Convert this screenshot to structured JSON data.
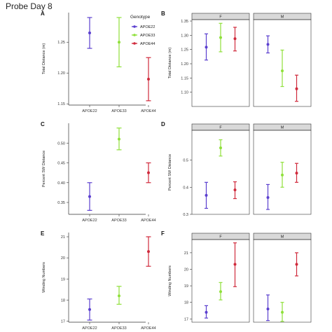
{
  "title": "Probe Day 8",
  "legend": {
    "title": "Genotype",
    "entries": [
      {
        "name": "APOE22",
        "color": "#5b3fcf"
      },
      {
        "name": "APOE33",
        "color": "#8fe03a"
      },
      {
        "name": "APOE44",
        "color": "#d02a3c"
      }
    ]
  },
  "chart_data": [
    {
      "panel": "A",
      "type": "scatter",
      "ylabel": "Total Distance (m)",
      "categories": [
        "APOE22",
        "APOE33",
        "APOE44"
      ],
      "ylim": [
        1.148,
        1.298
      ],
      "yticks": [
        1.15,
        1.2,
        1.25
      ],
      "points": [
        {
          "x": "APOE22",
          "y": 1.265,
          "lo": 1.24,
          "hi": 1.29,
          "color": "#5b3fcf"
        },
        {
          "x": "APOE33",
          "y": 1.25,
          "lo": 1.21,
          "hi": 1.29,
          "color": "#8fe03a"
        },
        {
          "x": "APOE44",
          "y": 1.19,
          "lo": 1.155,
          "hi": 1.225,
          "color": "#d02a3c"
        }
      ]
    },
    {
      "panel": "B",
      "type": "scatter",
      "ylabel": "Total Distance (m)",
      "facets": [
        "F",
        "M"
      ],
      "ylim": [
        1.05,
        1.355
      ],
      "yticks": [
        1.1,
        1.15,
        1.2,
        1.25,
        1.3,
        1.35
      ],
      "points": [
        {
          "facet": "F",
          "group": "APOE22",
          "y": 1.258,
          "lo": 1.213,
          "hi": 1.305,
          "color": "#5b3fcf"
        },
        {
          "facet": "F",
          "group": "APOE33",
          "y": 1.292,
          "lo": 1.242,
          "hi": 1.342,
          "color": "#8fe03a"
        },
        {
          "facet": "F",
          "group": "APOE44",
          "y": 1.288,
          "lo": 1.245,
          "hi": 1.328,
          "color": "#d02a3c"
        },
        {
          "facet": "M",
          "group": "APOE22",
          "y": 1.268,
          "lo": 1.238,
          "hi": 1.298,
          "color": "#5b3fcf"
        },
        {
          "facet": "M",
          "group": "APOE33",
          "y": 1.175,
          "lo": 1.12,
          "hi": 1.248,
          "color": "#8fe03a"
        },
        {
          "facet": "M",
          "group": "APOE44",
          "y": 1.112,
          "lo": 1.068,
          "hi": 1.16,
          "color": "#d02a3c"
        }
      ]
    },
    {
      "panel": "C",
      "type": "scatter",
      "ylabel": "Percent SW Distance",
      "categories": [
        "APOE22",
        "APOE33",
        "APOE44"
      ],
      "ylim": [
        0.32,
        0.55
      ],
      "yticks": [
        0.35,
        0.4,
        0.45,
        0.5
      ],
      "points": [
        {
          "x": "APOE22",
          "y": 0.365,
          "lo": 0.33,
          "hi": 0.4,
          "color": "#5b3fcf"
        },
        {
          "x": "APOE33",
          "y": 0.51,
          "lo": 0.483,
          "hi": 0.538,
          "color": "#8fe03a"
        },
        {
          "x": "APOE44",
          "y": 0.425,
          "lo": 0.4,
          "hi": 0.45,
          "color": "#d02a3c"
        }
      ]
    },
    {
      "panel": "D",
      "type": "scatter",
      "ylabel": "Percent SW Distance",
      "facets": [
        "F",
        "M"
      ],
      "ylim": [
        0.3,
        0.61
      ],
      "yticks": [
        0.3,
        0.4,
        0.5
      ],
      "points": [
        {
          "facet": "F",
          "group": "APOE22",
          "y": 0.37,
          "lo": 0.322,
          "hi": 0.418,
          "color": "#5b3fcf"
        },
        {
          "facet": "F",
          "group": "APOE33",
          "y": 0.545,
          "lo": 0.515,
          "hi": 0.575,
          "color": "#8fe03a"
        },
        {
          "facet": "F",
          "group": "APOE44",
          "y": 0.39,
          "lo": 0.358,
          "hi": 0.42,
          "color": "#d02a3c"
        },
        {
          "facet": "M",
          "group": "APOE22",
          "y": 0.362,
          "lo": 0.318,
          "hi": 0.41,
          "color": "#5b3fcf"
        },
        {
          "facet": "M",
          "group": "APOE33",
          "y": 0.445,
          "lo": 0.4,
          "hi": 0.492,
          "color": "#8fe03a"
        },
        {
          "facet": "M",
          "group": "APOE44",
          "y": 0.452,
          "lo": 0.418,
          "hi": 0.488,
          "color": "#d02a3c"
        }
      ]
    },
    {
      "panel": "E",
      "type": "scatter",
      "ylabel": "Winding Numbers",
      "categories": [
        "APOE22",
        "APOE33",
        "APOE44"
      ],
      "ylim": [
        16.95,
        21.2
      ],
      "yticks": [
        17,
        18,
        19,
        20,
        21
      ],
      "points": [
        {
          "x": "APOE22",
          "y": 17.55,
          "lo": 17.05,
          "hi": 18.05,
          "color": "#5b3fcf"
        },
        {
          "x": "APOE33",
          "y": 18.2,
          "lo": 17.8,
          "hi": 18.65,
          "color": "#8fe03a"
        },
        {
          "x": "APOE44",
          "y": 20.3,
          "lo": 19.6,
          "hi": 21.0,
          "color": "#d02a3c"
        }
      ]
    },
    {
      "panel": "F",
      "type": "scatter",
      "ylabel": "Winding Numbers",
      "facets": [
        "F",
        "M"
      ],
      "ylim": [
        16.8,
        21.8
      ],
      "yticks": [
        17,
        18,
        19,
        20,
        21
      ],
      "points": [
        {
          "facet": "F",
          "group": "APOE22",
          "y": 17.4,
          "lo": 17.05,
          "hi": 17.8,
          "color": "#5b3fcf"
        },
        {
          "facet": "F",
          "group": "APOE33",
          "y": 18.65,
          "lo": 18.15,
          "hi": 19.2,
          "color": "#8fe03a"
        },
        {
          "facet": "F",
          "group": "APOE44",
          "y": 20.3,
          "lo": 18.95,
          "hi": 21.6,
          "color": "#d02a3c"
        },
        {
          "facet": "M",
          "group": "APOE22",
          "y": 17.6,
          "lo": 16.9,
          "hi": 18.45,
          "color": "#5b3fcf"
        },
        {
          "facet": "M",
          "group": "APOE33",
          "y": 17.4,
          "lo": 16.85,
          "hi": 18.0,
          "color": "#8fe03a"
        },
        {
          "facet": "M",
          "group": "APOE44",
          "y": 20.3,
          "lo": 19.6,
          "hi": 21.0,
          "color": "#d02a3c"
        }
      ]
    }
  ]
}
